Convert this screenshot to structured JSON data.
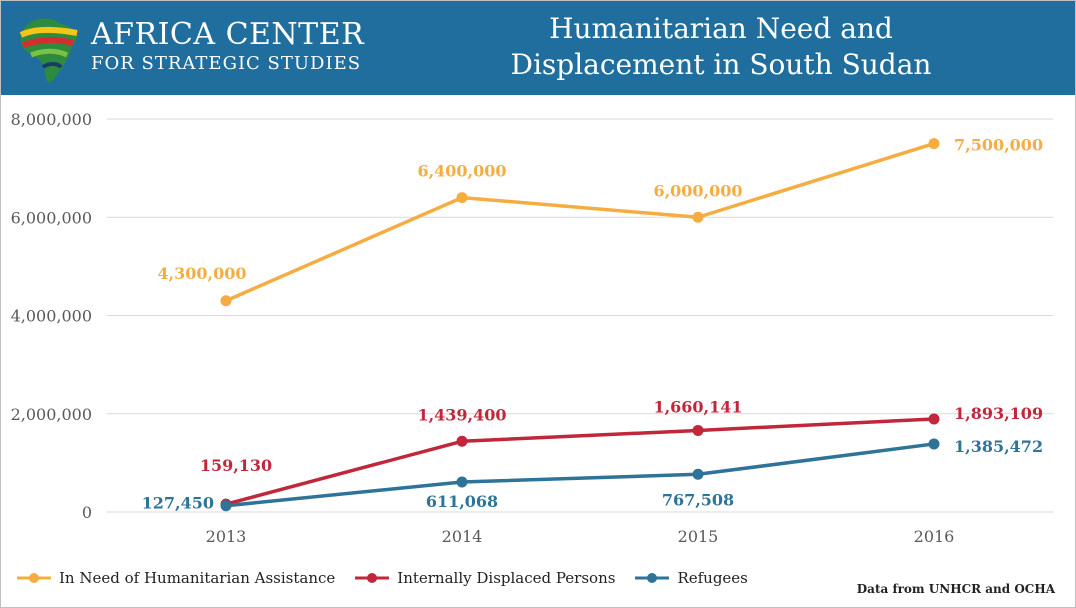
{
  "header": {
    "logo_title": "AFRICA CENTER",
    "logo_subtitle": "FOR STRATEGIC STUDIES",
    "title_line1": "Humanitarian Need and",
    "title_line2": "Displacement in South Sudan"
  },
  "source_note": "Data from UNHCR and OCHA",
  "chart_data": {
    "type": "line",
    "title": "Humanitarian Need and Displacement in South Sudan",
    "categories": [
      "2013",
      "2014",
      "2015",
      "2016"
    ],
    "ylim": [
      0,
      8000000
    ],
    "yticks": [
      0,
      2000000,
      4000000,
      6000000,
      8000000
    ],
    "ytick_labels": [
      "0",
      "2,000,000",
      "4,000,000",
      "6,000,000",
      "8,000,000"
    ],
    "grid": true,
    "legend_position": "bottom-left",
    "series": [
      {
        "name": "In Need of Humanitarian Assistance",
        "color": "#f5ad42",
        "values": [
          4300000,
          6400000,
          6000000,
          7500000
        ],
        "labels": [
          "4,300,000",
          "6,400,000",
          "6,000,000",
          "7,500,000"
        ]
      },
      {
        "name": "Internally Displaced Persons",
        "color": "#c0273a",
        "values": [
          159130,
          1439400,
          1660141,
          1893109
        ],
        "labels": [
          "159,130",
          "1,439,400",
          "1,660,141",
          "1,893,109"
        ]
      },
      {
        "name": "Refugees",
        "color": "#2f7398",
        "values": [
          127450,
          611068,
          767508,
          1385472
        ],
        "labels": [
          "127,450",
          "611,068",
          "767,508",
          "1,385,472"
        ]
      }
    ]
  }
}
